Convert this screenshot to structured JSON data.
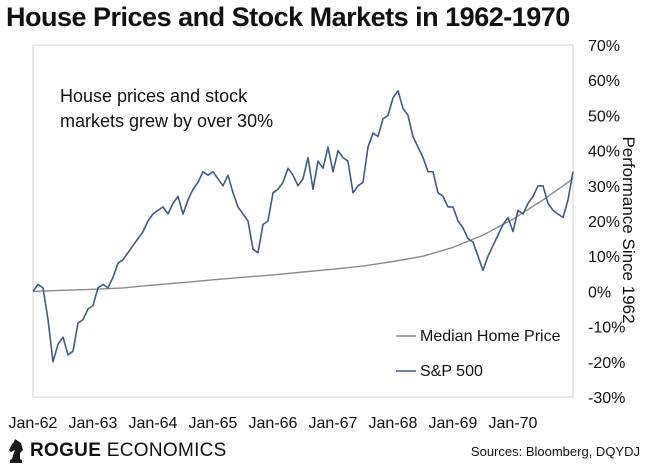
{
  "chart_data": {
    "type": "line",
    "title": "House Prices and Stock Markets in 1962-1970",
    "ylabel": "Performance Since 1962",
    "annotation": [
      "House prices and stock",
      "markets grew by over 30%"
    ],
    "ylim": [
      -30,
      70
    ],
    "yticks": [
      "70%",
      "60%",
      "50%",
      "40%",
      "30%",
      "20%",
      "10%",
      "0%",
      "-10%",
      "-20%",
      "-30%"
    ],
    "xticks": [
      "Jan-62",
      "Jan-63",
      "Jan-64",
      "Jan-65",
      "Jan-66",
      "Jan-67",
      "Jan-68",
      "Jan-69",
      "Jan-70"
    ],
    "x_range": [
      0,
      108
    ],
    "series": [
      {
        "name": "Median Home Price",
        "color": "#8a8a8a",
        "x": [
          0,
          6,
          12,
          18,
          24,
          30,
          36,
          42,
          48,
          54,
          60,
          66,
          72,
          78,
          84,
          90,
          96,
          102,
          108
        ],
        "values": [
          0,
          0.3,
          0.6,
          1.0,
          1.8,
          2.5,
          3.3,
          4.0,
          4.7,
          5.5,
          6.3,
          7.2,
          8.5,
          10.0,
          12.5,
          16.0,
          20.5,
          26.0,
          32.0
        ]
      },
      {
        "name": "S&P 500",
        "color": "#3e5c85",
        "x": [
          0,
          1,
          2,
          3,
          4,
          5,
          6,
          7,
          8,
          9,
          10,
          11,
          12,
          13,
          14,
          15,
          16,
          17,
          18,
          19,
          20,
          21,
          22,
          23,
          24,
          25,
          26,
          27,
          28,
          29,
          30,
          31,
          32,
          33,
          34,
          35,
          36,
          37,
          38,
          39,
          40,
          41,
          42,
          43,
          44,
          45,
          46,
          47,
          48,
          49,
          50,
          51,
          52,
          53,
          54,
          55,
          56,
          57,
          58,
          59,
          60,
          61,
          62,
          63,
          64,
          65,
          66,
          67,
          68,
          69,
          70,
          71,
          72,
          73,
          74,
          75,
          76,
          77,
          78,
          79,
          80,
          81,
          82,
          83,
          84,
          85,
          86,
          87,
          88,
          89,
          90,
          91,
          92,
          93,
          94,
          95,
          96,
          97,
          98,
          99,
          100,
          101,
          102,
          103,
          104,
          105,
          106,
          107,
          108
        ],
        "values": [
          0,
          2,
          1,
          -8,
          -20,
          -15,
          -13,
          -18,
          -17,
          -9,
          -8,
          -5,
          -4,
          1,
          2,
          1,
          4,
          8,
          9,
          11,
          13,
          15,
          17,
          20,
          22,
          23,
          24,
          22,
          25,
          27,
          22,
          26,
          29,
          31,
          34,
          33,
          34,
          32,
          30,
          33,
          28,
          24,
          22,
          20,
          12,
          11,
          19,
          20,
          28,
          29,
          31,
          35,
          33,
          30,
          32,
          38,
          29,
          37,
          35,
          41,
          34,
          40,
          38,
          37,
          28,
          30,
          31,
          41,
          45,
          44,
          49,
          50,
          55,
          57,
          52,
          50,
          44,
          41,
          38,
          34,
          34,
          28,
          27,
          24,
          24,
          20,
          18,
          15,
          14,
          10,
          6,
          10,
          13,
          16,
          19,
          21,
          17,
          23,
          22,
          25,
          27,
          30,
          30,
          25,
          23,
          22,
          21,
          26,
          34
        ]
      }
    ]
  },
  "logo": {
    "text_bold": "ROGUE",
    "text_regular": "ECONOMICS",
    "icon": "chess-knight-icon"
  },
  "source": "Sources: Bloomberg, DQYDJ"
}
